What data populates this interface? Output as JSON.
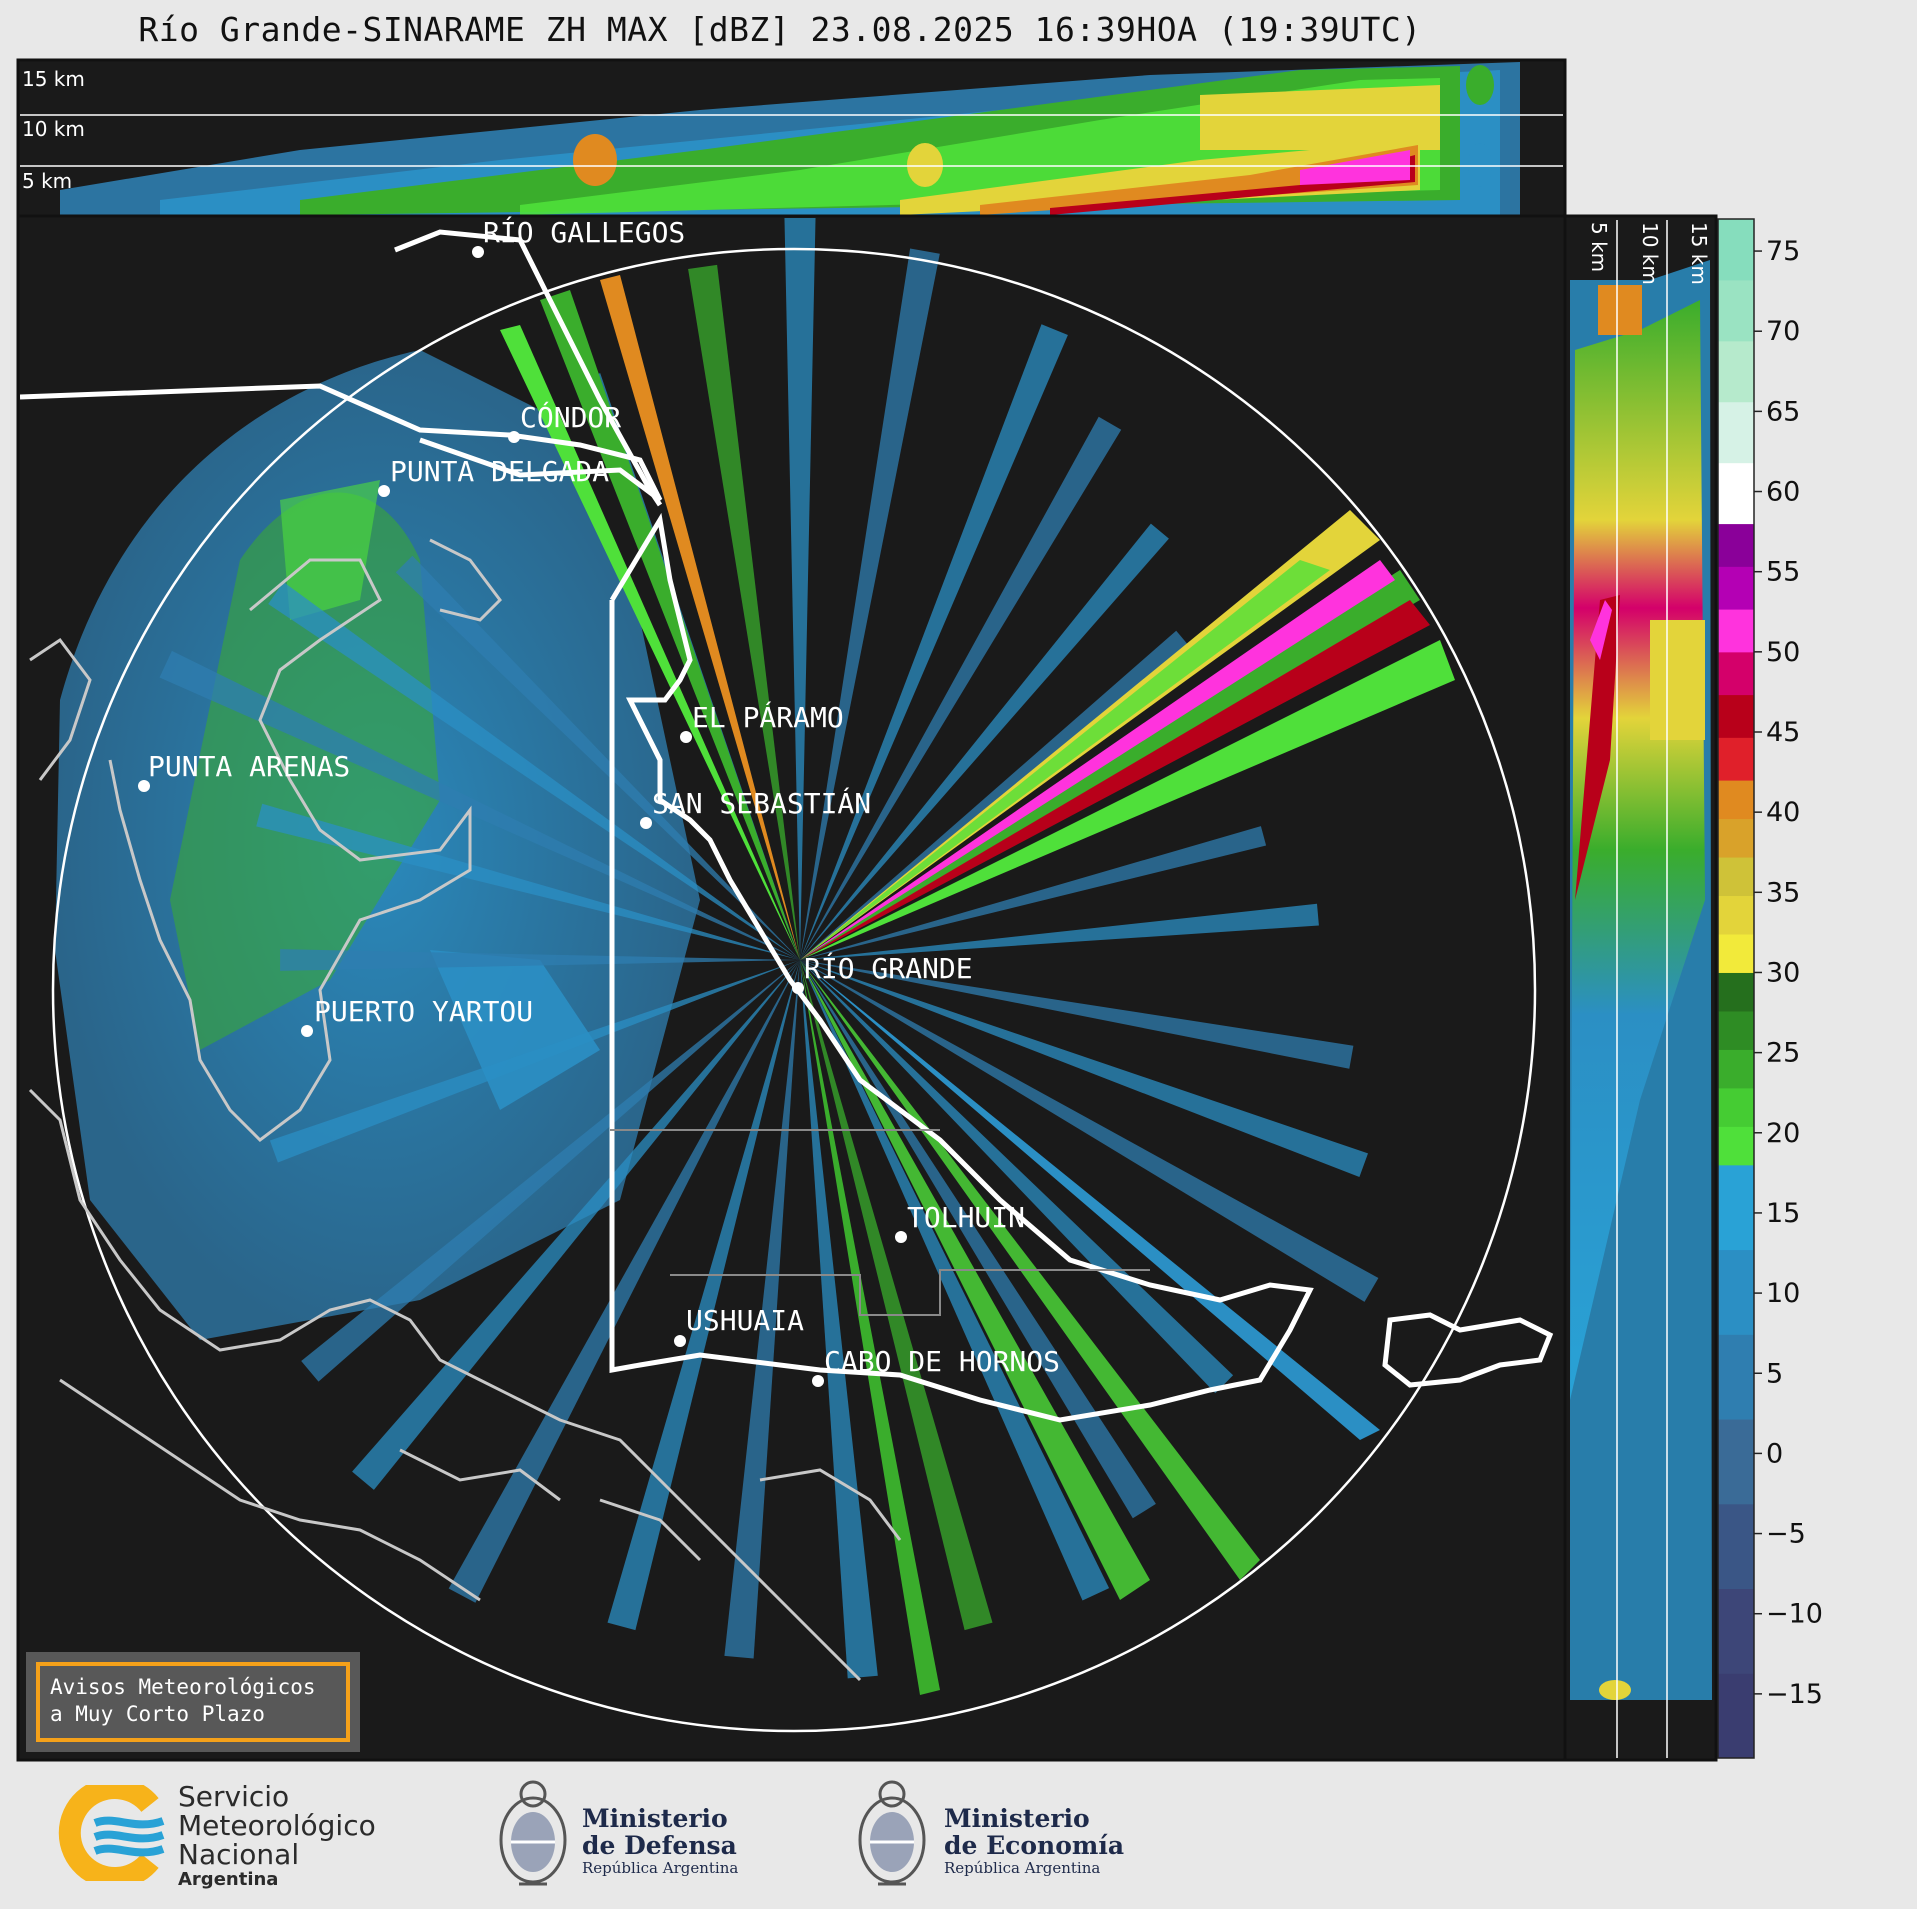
{
  "title": "Río Grande-SINARAME ZH MAX [dBZ] 23.08.2025 16:39HOA (19:39UTC)",
  "top_panel_altitudes": [
    "15 km",
    "10 km",
    "5 km"
  ],
  "side_panel_altitudes": [
    "5 km",
    "10 km",
    "15 km"
  ],
  "places": [
    {
      "name": "RÍO GALLEGOS"
    },
    {
      "name": "CÓNDOR"
    },
    {
      "name": "PUNTA DELGADA"
    },
    {
      "name": "EL PÁRAMO"
    },
    {
      "name": "PUNTA ARENAS"
    },
    {
      "name": "SAN SEBASTIÁN"
    },
    {
      "name": "RÍO GRANDE"
    },
    {
      "name": "PUERTO YARTOU"
    },
    {
      "name": "TOLHUIN"
    },
    {
      "name": "USHUAIA"
    },
    {
      "name": "CABO DE HORNOS"
    }
  ],
  "colorbar": {
    "unit": "dBZ",
    "min": -19,
    "max": 77,
    "ticks": [
      75,
      70,
      65,
      60,
      55,
      50,
      45,
      40,
      35,
      30,
      25,
      20,
      15,
      10,
      5,
      0,
      -5,
      -10,
      -15
    ],
    "bands": [
      {
        "from": -19,
        "to": 18,
        "colors": [
          "#3a3d70",
          "#3d4678",
          "#3a5686",
          "#3a6b97",
          "#2f7eb0",
          "#2b8fc4",
          "#29a2d6"
        ]
      },
      {
        "from": 18,
        "to": 30,
        "colors": [
          "#4fe03a",
          "#45cc33",
          "#3aad2c",
          "#2e8c24",
          "#256f1d"
        ]
      },
      {
        "from": 30,
        "to": 42,
        "colors": [
          "#f2ea3a",
          "#e3d43a",
          "#cfc238",
          "#d9a22a",
          "#e08a20"
        ]
      },
      {
        "from": 42,
        "to": 58,
        "colors": [
          "#e0202a",
          "#b8001a",
          "#d4006a",
          "#ff33dd",
          "#b400b4",
          "#8a0099"
        ]
      },
      {
        "from": 58,
        "to": 77,
        "colors": [
          "#ffffff",
          "#d6f2e6",
          "#b6eacc",
          "#9ae3c2",
          "#86ddbd"
        ]
      }
    ]
  },
  "notice": {
    "line1": "Avisos Meteorológicos",
    "line2": "a Muy Corto Plazo"
  },
  "logos": {
    "smn": {
      "line1": "Servicio",
      "line2": "Meteorológico",
      "line3": "Nacional",
      "line4": "Argentina"
    },
    "defensa": {
      "line1": "Ministerio",
      "line2": "de Defensa",
      "line3": "República Argentina"
    },
    "economia": {
      "line1": "Ministerio",
      "line2": "de Economía",
      "line3": "República Argentina"
    }
  },
  "colors": {
    "background": "#e8e8e8",
    "map_bg": "#1a1a1a",
    "coast": "#ffffff",
    "accent_orange": "#f5a11a",
    "smn_blue": "#29a2d6",
    "smn_yellow": "#f7b31a"
  }
}
